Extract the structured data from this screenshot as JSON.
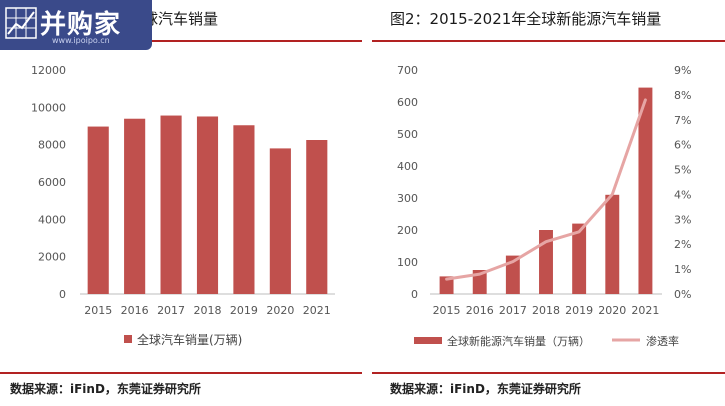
{
  "logo": {
    "text": "并购家",
    "sub": "www.ipoipo.cn"
  },
  "left": {
    "title": "全球汽车销量",
    "source": "数据来源：iFinD，东莞证券研究所",
    "chart_data": {
      "type": "bar",
      "categories": [
        "2015",
        "2016",
        "2017",
        "2018",
        "2019",
        "2020",
        "2021"
      ],
      "series": [
        {
          "name": "全球汽车销量(万辆)",
          "values": [
            8970,
            9390,
            9560,
            9510,
            9040,
            7800,
            8250
          ]
        }
      ],
      "ylim": [
        0,
        12000
      ],
      "yticks": [
        "0",
        "2000",
        "4000",
        "6000",
        "8000",
        "10000",
        "12000"
      ],
      "legend_position": "bottom",
      "colors": {
        "bar": "#c0504d"
      }
    }
  },
  "right": {
    "title": "图2：2015-2021年全球新能源汽车销量",
    "source": "数据来源：iFinD，东莞证券研究所",
    "chart_data": {
      "type": "bar",
      "categories": [
        "2015",
        "2016",
        "2017",
        "2018",
        "2019",
        "2020",
        "2021"
      ],
      "series": [
        {
          "name": "全球新能源汽车销量（万辆）",
          "type": "bar",
          "axis": "left",
          "values": [
            55,
            75,
            120,
            200,
            220,
            310,
            645
          ]
        },
        {
          "name": "渗透率",
          "type": "line",
          "axis": "right",
          "values": [
            0.6,
            0.8,
            1.3,
            2.1,
            2.5,
            4.0,
            7.8
          ]
        }
      ],
      "ylim": [
        0,
        700
      ],
      "yticks": [
        "0",
        "100",
        "200",
        "300",
        "400",
        "500",
        "600",
        "700"
      ],
      "y2lim": [
        0,
        9
      ],
      "y2ticks": [
        "0%",
        "1%",
        "2%",
        "3%",
        "4%",
        "5%",
        "6%",
        "7%",
        "8%",
        "9%"
      ],
      "legend_position": "bottom",
      "colors": {
        "bar": "#c0504d",
        "line": "#e6a5a4"
      }
    }
  }
}
